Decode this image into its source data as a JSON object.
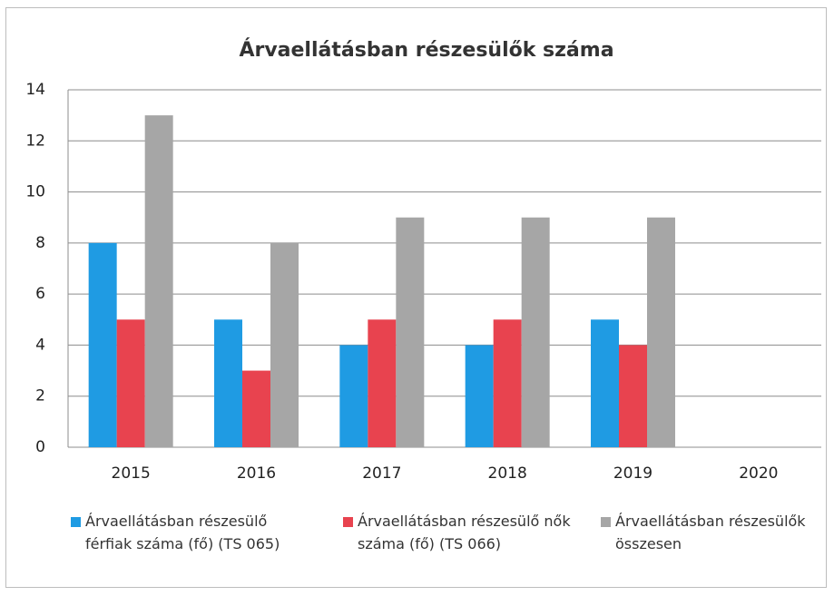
{
  "chart_data": {
    "type": "bar",
    "title": "Árvaellátásban részesülők száma",
    "categories": [
      "2015",
      "2016",
      "2017",
      "2018",
      "2019",
      "2020"
    ],
    "series": [
      {
        "name": "Árvaellátásban részesülő férfiak száma (fő) (TS 065)",
        "color": "#1f9be3",
        "values": [
          8,
          5,
          4,
          4,
          5,
          null
        ]
      },
      {
        "name": "Árvaellátásban részesülő nők száma (fő) (TS 066)",
        "color": "#e8434f",
        "values": [
          5,
          3,
          5,
          5,
          4,
          null
        ]
      },
      {
        "name": "Árvaellátásban részesülők összesen",
        "color": "#a6a6a6",
        "values": [
          13,
          8,
          9,
          9,
          9,
          null
        ]
      }
    ],
    "ylim": [
      0,
      14
    ],
    "yticks": [
      0,
      2,
      4,
      6,
      8,
      10,
      12,
      14
    ],
    "grid": true,
    "legend": "bottom"
  }
}
